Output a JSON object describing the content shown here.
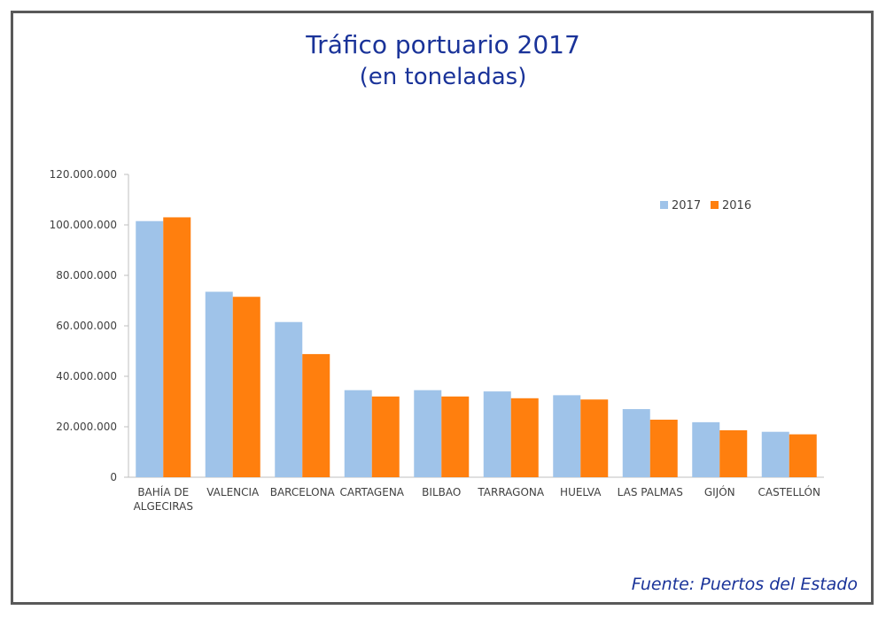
{
  "title": "Tráfico portuario 2017",
  "subtitle": "(en toneladas)",
  "source": "Fuente: Puertos del Estado",
  "colors": {
    "2017": "#9fc3e9",
    "2016": "#ff7f0e",
    "title": "#1a3399"
  },
  "chart_data": {
    "type": "bar",
    "title": "Tráfico portuario 2017",
    "subtitle": "(en toneladas)",
    "categories": [
      [
        "BAHÍA DE",
        "ALGECIRAS"
      ],
      [
        "VALENCIA"
      ],
      [
        "BARCELONA"
      ],
      [
        "CARTAGENA"
      ],
      [
        "BILBAO"
      ],
      [
        "TARRAGONA"
      ],
      [
        "HUELVA"
      ],
      [
        "LAS PALMAS"
      ],
      [
        "GIJÓN"
      ],
      [
        "CASTELLÓN"
      ]
    ],
    "series": [
      {
        "name": "2017",
        "values": [
          101500000,
          73500000,
          61500000,
          34500000,
          34500000,
          34000000,
          32500000,
          27000000,
          21800000,
          18000000
        ]
      },
      {
        "name": "2016",
        "values": [
          103000000,
          71500000,
          48800000,
          32000000,
          32000000,
          31300000,
          30800000,
          22800000,
          18600000,
          17000000
        ]
      }
    ],
    "yticks": [
      "0",
      "20.000.000",
      "40.000.000",
      "60.000.000",
      "80.000.000",
      "100.000.000",
      "120.000.000"
    ],
    "ylim": [
      0,
      120000000
    ],
    "legend_position": "top-right",
    "grid": false
  }
}
